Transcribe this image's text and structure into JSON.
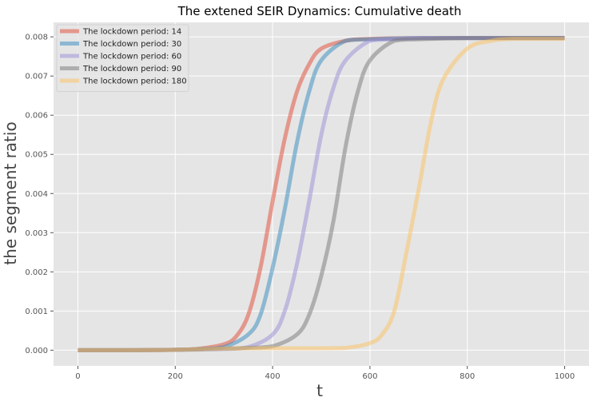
{
  "chart_data": {
    "type": "line",
    "title": "The extened SEIR Dynamics: Cumulative death",
    "xlabel": "t",
    "ylabel": "the segment ratio",
    "xlim": [
      -50,
      1050
    ],
    "ylim": [
      -0.0004,
      0.00837
    ],
    "x_ticks": [
      0,
      200,
      400,
      600,
      800,
      1000
    ],
    "x_tick_labels": [
      "0",
      "200",
      "400",
      "600",
      "800",
      "1000"
    ],
    "y_ticks": [
      0.0,
      0.001,
      0.002,
      0.003,
      0.004,
      0.005,
      0.006,
      0.007,
      0.008
    ],
    "y_tick_labels": [
      "0.000",
      "0.001",
      "0.002",
      "0.003",
      "0.004",
      "0.005",
      "0.006",
      "0.007",
      "0.008"
    ],
    "grid": true,
    "legend_position": "top-left",
    "background": "#e5e5e5",
    "series": [
      {
        "name": "The lockdown period: 14",
        "color": "#e24a33",
        "x": [
          0,
          100,
          200,
          250,
          300,
          325,
          350,
          375,
          400,
          425,
          450,
          475,
          500,
          550,
          600,
          700,
          800,
          1000
        ],
        "y": [
          0.0,
          0.0,
          1e-05,
          4e-05,
          0.00015,
          0.00035,
          0.0009,
          0.0021,
          0.0038,
          0.0054,
          0.0066,
          0.0073,
          0.0077,
          0.0079,
          0.00795,
          0.00797,
          0.00797,
          0.00797
        ]
      },
      {
        "name": "The lockdown period: 30",
        "color": "#348abd",
        "x": [
          0,
          100,
          200,
          250,
          300,
          350,
          375,
          400,
          425,
          450,
          475,
          500,
          550,
          600,
          700,
          800,
          1000
        ],
        "y": [
          0.0,
          0.0,
          1e-05,
          3e-05,
          8e-05,
          0.0004,
          0.0009,
          0.0021,
          0.0036,
          0.0053,
          0.0066,
          0.0074,
          0.0079,
          0.00794,
          0.00797,
          0.00797,
          0.00797
        ]
      },
      {
        "name": "The lockdown period: 60",
        "color": "#988ed5",
        "x": [
          0,
          100,
          200,
          300,
          350,
          400,
          425,
          450,
          475,
          500,
          525,
          550,
          600,
          650,
          700,
          800,
          1000
        ],
        "y": [
          0.0,
          0.0,
          1e-05,
          3e-05,
          8e-05,
          0.0004,
          0.001,
          0.0022,
          0.0038,
          0.0055,
          0.0067,
          0.0074,
          0.0079,
          0.00794,
          0.00797,
          0.00797,
          0.00797
        ]
      },
      {
        "name": "The lockdown period: 90",
        "color": "#777777",
        "x": [
          0,
          100,
          200,
          300,
          350,
          400,
          450,
          475,
          500,
          525,
          550,
          575,
          600,
          650,
          700,
          800,
          1000
        ],
        "y": [
          0.0,
          0.0,
          1e-05,
          4e-05,
          6e-05,
          0.0001,
          0.0004,
          0.0009,
          0.0019,
          0.0033,
          0.0052,
          0.0066,
          0.0074,
          0.0079,
          0.00794,
          0.00797,
          0.00797
        ]
      },
      {
        "name": "The lockdown period: 180",
        "color": "#fbc15e",
        "x": [
          0,
          100,
          200,
          300,
          400,
          500,
          550,
          600,
          625,
          650,
          675,
          700,
          725,
          750,
          800,
          850,
          900,
          1000
        ],
        "y": [
          0.0,
          0.0,
          1e-05,
          4e-05,
          5e-05,
          5e-05,
          6e-05,
          0.00018,
          0.0004,
          0.001,
          0.0025,
          0.0041,
          0.0058,
          0.0069,
          0.0077,
          0.0079,
          0.00795,
          0.00795
        ]
      }
    ]
  }
}
